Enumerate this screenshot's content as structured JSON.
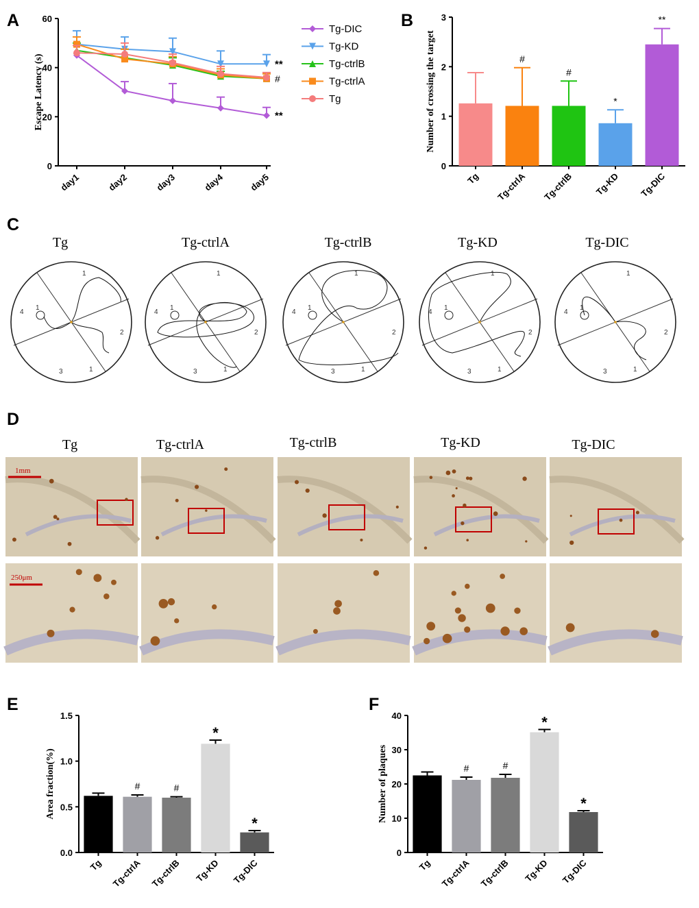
{
  "panel_labels": {
    "a": "A",
    "b": "B",
    "c": "C",
    "d": "D",
    "e": "E",
    "f": "F"
  },
  "groups": [
    "Tg",
    "Tg-ctrlA",
    "Tg-ctrlB",
    "Tg-KD",
    "Tg-DIC"
  ],
  "colors": {
    "tg": "#f47c7c",
    "ctrlA": "#f98b1d",
    "ctrlB": "#26c21a",
    "kd": "#5aa2ea",
    "dic": "#b25bd7",
    "red": "#c00000"
  },
  "chart_data": [
    {
      "id": "A",
      "type": "line",
      "x": [
        "day1",
        "day2",
        "day3",
        "day4",
        "day5"
      ],
      "ylabel": "Escape Latency (s)",
      "ylim": [
        0,
        60
      ],
      "yticks": [
        0,
        20,
        40,
        60
      ],
      "series": [
        {
          "name": "Tg-DIC",
          "values": [
            45,
            30.5,
            26.5,
            23.5,
            20.5
          ],
          "err": [
            0,
            3.8,
            7,
            4.5,
            3.3
          ],
          "color": "#b25bd7",
          "marker": "diamond",
          "sig": "**"
        },
        {
          "name": "Tg-KD",
          "values": [
            49.5,
            47.5,
            46.5,
            41.5,
            41.5
          ],
          "err": [
            5.5,
            5,
            5.5,
            5.3,
            3.8
          ],
          "color": "#5aa2ea",
          "marker": "tri-down",
          "sig": "**"
        },
        {
          "name": "Tg-ctrlB",
          "values": [
            47,
            44,
            41,
            36.5,
            35.5
          ],
          "err": [
            3,
            3.5,
            3,
            2,
            2
          ],
          "color": "#26c21a",
          "marker": "tri-up",
          "sig": "#"
        },
        {
          "name": "Tg-ctrlA",
          "values": [
            49.5,
            43.5,
            41.5,
            37,
            35.5
          ],
          "err": [
            3,
            4,
            3,
            2.5,
            2
          ],
          "color": "#f98b1d",
          "marker": "square",
          "sig": ""
        },
        {
          "name": "Tg",
          "values": [
            46,
            45.5,
            42,
            37.5,
            36
          ],
          "err": [
            3,
            4.5,
            3.5,
            3,
            2
          ],
          "color": "#f47c7c",
          "marker": "circle",
          "sig": ""
        }
      ],
      "legend_position": "right"
    },
    {
      "id": "B",
      "type": "bar",
      "categories": [
        "Tg",
        "Tg-ctrlA",
        "Tg-ctrlB",
        "Tg-KD",
        "Tg-DIC"
      ],
      "values": [
        1.26,
        1.21,
        1.21,
        0.86,
        2.45
      ],
      "err": [
        0.62,
        0.77,
        0.5,
        0.27,
        0.32
      ],
      "sig": [
        "",
        "#",
        "#",
        "*",
        "**"
      ],
      "colors": [
        "#f78a8a",
        "#fa820f",
        "#1fc412",
        "#5aa2ea",
        "#b25bd7"
      ],
      "ylabel": "Number of crossing the target",
      "ylim": [
        0,
        3
      ],
      "yticks": [
        0,
        1,
        2,
        3
      ]
    },
    {
      "id": "E",
      "type": "bar",
      "categories": [
        "Tg",
        "Tg-ctrlA",
        "Tg-ctrlB",
        "Tg-KD",
        "Tg-DIC"
      ],
      "values": [
        0.62,
        0.61,
        0.6,
        1.19,
        0.22
      ],
      "err": [
        0.03,
        0.02,
        0.01,
        0.04,
        0.02
      ],
      "sig": [
        "",
        "#",
        "#",
        "*",
        "*"
      ],
      "colors": [
        "#000000",
        "#a0a0a6",
        "#7c7c7c",
        "#d9d9d9",
        "#5a5a5a"
      ],
      "ylabel": "Area fraction(%)",
      "ylim": [
        0,
        1.5
      ],
      "yticks": [
        "0.0",
        "0.5",
        "1.0",
        "1.5"
      ]
    },
    {
      "id": "F",
      "type": "bar",
      "categories": [
        "Tg",
        "Tg-ctrlA",
        "Tg-ctrlB",
        "Tg-KD",
        "Tg-DIC"
      ],
      "values": [
        22.5,
        21.2,
        21.8,
        35.1,
        11.8
      ],
      "err": [
        1.0,
        0.8,
        1.0,
        0.8,
        0.4
      ],
      "sig": [
        "",
        "#",
        "#",
        "*",
        "*"
      ],
      "colors": [
        "#000000",
        "#a0a0a6",
        "#7c7c7c",
        "#d9d9d9",
        "#5a5a5a"
      ],
      "ylabel": "Number of plaques",
      "ylim": [
        0,
        40
      ],
      "yticks": [
        0,
        10,
        20,
        30,
        40
      ]
    }
  ],
  "track_labels": {
    "q1": "1",
    "q2": "2",
    "q3": "3",
    "q4": "4",
    "platform": "1"
  },
  "micro": {
    "scale_low": "1mm",
    "scale_high": "250μm"
  }
}
